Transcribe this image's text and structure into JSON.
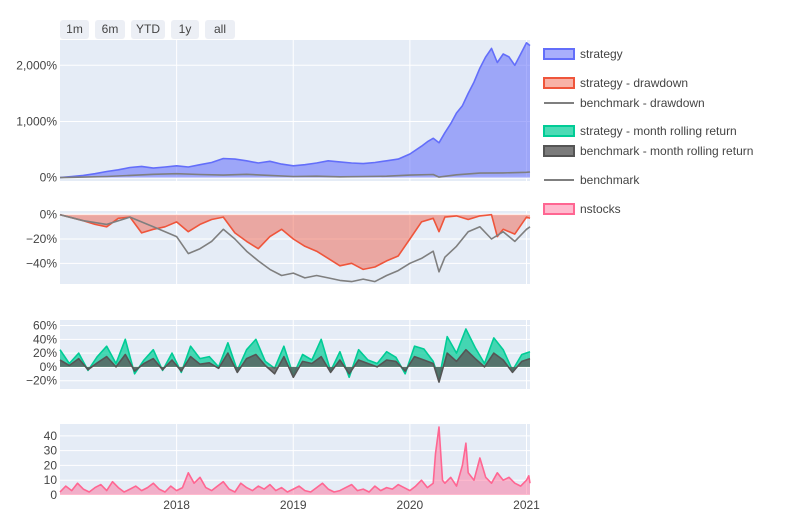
{
  "range_selector": {
    "buttons": [
      {
        "label": "1m"
      },
      {
        "label": "6m"
      },
      {
        "label": "YTD"
      },
      {
        "label": "1y"
      },
      {
        "label": "all"
      }
    ]
  },
  "colors": {
    "plot_bg": "#e5ecf6",
    "grid": "#ffffff",
    "strategy": "#636efa",
    "strategy_fill": "rgba(99,110,250,0.55)",
    "benchmark": "#7f7f7f",
    "drawdown": "#ef553b",
    "drawdown_fill": "rgba(239,85,59,0.45)",
    "rolling": "#00cc96",
    "rolling_fill": "rgba(0,204,150,0.7)",
    "bench_rolling_fill": "rgba(90,90,90,0.8)",
    "nstocks": "#ff6692",
    "nstocks_fill": "rgba(255,102,146,0.45)"
  },
  "chart_data": [
    {
      "type": "area",
      "id": "cumulative",
      "ylim": [
        -60,
        2450
      ],
      "yticks": [
        0,
        1000,
        2000
      ],
      "ytick_labels": [
        "0%",
        "1,000%",
        "2,000%"
      ],
      "series": [
        {
          "name": "strategy",
          "x": [
            2017.0,
            2017.1,
            2017.2,
            2017.3,
            2017.4,
            2017.5,
            2017.6,
            2017.7,
            2017.8,
            2017.9,
            2018.0,
            2018.1,
            2018.2,
            2018.3,
            2018.4,
            2018.5,
            2018.6,
            2018.7,
            2018.8,
            2018.9,
            2019.0,
            2019.1,
            2019.2,
            2019.3,
            2019.4,
            2019.5,
            2019.6,
            2019.7,
            2019.8,
            2019.9,
            2020.0,
            2020.1,
            2020.15,
            2020.2,
            2020.25,
            2020.3,
            2020.35,
            2020.4,
            2020.45,
            2020.5,
            2020.55,
            2020.6,
            2020.65,
            2020.7,
            2020.75,
            2020.8,
            2020.85,
            2020.9,
            2020.95,
            2021.0,
            2021.03
          ],
          "values": [
            0,
            20,
            40,
            70,
            110,
            140,
            180,
            200,
            170,
            190,
            210,
            190,
            230,
            270,
            340,
            330,
            300,
            260,
            290,
            240,
            210,
            230,
            260,
            300,
            280,
            260,
            250,
            270,
            300,
            330,
            420,
            560,
            640,
            700,
            620,
            800,
            960,
            1150,
            1280,
            1500,
            1700,
            1950,
            2150,
            2300,
            2050,
            2200,
            2150,
            2000,
            2200,
            2400,
            2350
          ]
        },
        {
          "name": "benchmark",
          "x": [
            2017.0,
            2017.2,
            2017.4,
            2017.6,
            2017.8,
            2018.0,
            2018.2,
            2018.4,
            2018.6,
            2018.8,
            2019.0,
            2019.2,
            2019.4,
            2019.6,
            2019.8,
            2020.0,
            2020.2,
            2020.25,
            2020.4,
            2020.6,
            2020.8,
            2021.0,
            2021.03
          ],
          "values": [
            0,
            10,
            20,
            40,
            60,
            70,
            55,
            45,
            60,
            40,
            20,
            25,
            15,
            20,
            25,
            45,
            55,
            10,
            50,
            80,
            85,
            95,
            100
          ]
        }
      ]
    },
    {
      "type": "area",
      "id": "drawdown",
      "ylim": [
        -57,
        3
      ],
      "yticks": [
        0,
        -20,
        -40
      ],
      "ytick_labels": [
        "0%",
        "−20%",
        "−40%"
      ],
      "series": [
        {
          "name": "strategy - drawdown",
          "x": [
            2017.0,
            2017.2,
            2017.3,
            2017.4,
            2017.5,
            2017.6,
            2017.7,
            2017.8,
            2017.9,
            2018.0,
            2018.1,
            2018.2,
            2018.3,
            2018.4,
            2018.5,
            2018.6,
            2018.7,
            2018.8,
            2018.9,
            2019.0,
            2019.1,
            2019.2,
            2019.3,
            2019.4,
            2019.5,
            2019.6,
            2019.7,
            2019.8,
            2019.9,
            2020.0,
            2020.1,
            2020.2,
            2020.25,
            2020.3,
            2020.4,
            2020.5,
            2020.6,
            2020.7,
            2020.75,
            2020.8,
            2020.9,
            2021.0,
            2021.03
          ],
          "values": [
            0,
            -5,
            -8,
            -10,
            -3,
            -2,
            -15,
            -12,
            -10,
            -6,
            -14,
            -8,
            -4,
            -2,
            -15,
            -22,
            -28,
            -18,
            -12,
            -20,
            -26,
            -30,
            -36,
            -42,
            -40,
            -45,
            -43,
            -38,
            -34,
            -20,
            -6,
            -3,
            -14,
            -2,
            -1,
            -4,
            -1,
            0,
            -18,
            -12,
            -16,
            -2,
            -3
          ]
        },
        {
          "name": "benchmark - drawdown",
          "x": [
            2017.0,
            2017.2,
            2017.4,
            2017.6,
            2017.8,
            2018.0,
            2018.1,
            2018.2,
            2018.3,
            2018.4,
            2018.5,
            2018.6,
            2018.7,
            2018.8,
            2018.9,
            2019.0,
            2019.1,
            2019.2,
            2019.3,
            2019.4,
            2019.5,
            2019.6,
            2019.7,
            2019.8,
            2019.9,
            2020.0,
            2020.1,
            2020.2,
            2020.25,
            2020.3,
            2020.4,
            2020.5,
            2020.6,
            2020.7,
            2020.8,
            2020.9,
            2021.0,
            2021.03
          ],
          "values": [
            0,
            -5,
            -8,
            -2,
            -10,
            -18,
            -32,
            -28,
            -22,
            -12,
            -20,
            -30,
            -38,
            -45,
            -50,
            -48,
            -52,
            -50,
            -52,
            -54,
            -55,
            -53,
            -55,
            -50,
            -46,
            -40,
            -36,
            -30,
            -47,
            -35,
            -26,
            -14,
            -10,
            -20,
            -14,
            -22,
            -12,
            -10
          ]
        }
      ]
    },
    {
      "type": "area",
      "id": "rolling",
      "ylim": [
        -32,
        68
      ],
      "yticks": [
        -20,
        0,
        20,
        40,
        60
      ],
      "ytick_labels": [
        "−20%",
        "0%",
        "20%",
        "40%",
        "60%"
      ],
      "series": [
        {
          "name": "strategy - month rolling return",
          "x": [
            2017.0,
            2017.08,
            2017.16,
            2017.24,
            2017.32,
            2017.4,
            2017.48,
            2017.56,
            2017.64,
            2017.72,
            2017.8,
            2017.88,
            2017.96,
            2018.04,
            2018.12,
            2018.2,
            2018.28,
            2018.36,
            2018.44,
            2018.52,
            2018.6,
            2018.68,
            2018.76,
            2018.84,
            2018.92,
            2019.0,
            2019.08,
            2019.16,
            2019.24,
            2019.32,
            2019.4,
            2019.48,
            2019.56,
            2019.64,
            2019.72,
            2019.8,
            2019.88,
            2019.96,
            2020.04,
            2020.12,
            2020.2,
            2020.25,
            2020.32,
            2020.4,
            2020.48,
            2020.56,
            2020.64,
            2020.72,
            2020.8,
            2020.88,
            2020.96,
            2021.03
          ],
          "values": [
            25,
            5,
            20,
            -5,
            15,
            30,
            5,
            40,
            -10,
            10,
            25,
            -5,
            20,
            -8,
            30,
            12,
            15,
            0,
            35,
            -5,
            25,
            40,
            8,
            -2,
            30,
            -12,
            18,
            10,
            40,
            -6,
            22,
            -15,
            25,
            10,
            5,
            22,
            14,
            -10,
            30,
            26,
            8,
            -18,
            44,
            20,
            55,
            28,
            5,
            42,
            25,
            -5,
            18,
            22
          ]
        },
        {
          "name": "benchmark - month rolling return",
          "x": [
            2017.0,
            2017.08,
            2017.16,
            2017.24,
            2017.32,
            2017.4,
            2017.48,
            2017.56,
            2017.64,
            2017.72,
            2017.8,
            2017.88,
            2017.96,
            2018.04,
            2018.12,
            2018.2,
            2018.28,
            2018.36,
            2018.44,
            2018.52,
            2018.6,
            2018.68,
            2018.76,
            2018.84,
            2018.92,
            2019.0,
            2019.08,
            2019.16,
            2019.24,
            2019.32,
            2019.4,
            2019.48,
            2019.56,
            2019.64,
            2019.72,
            2019.8,
            2019.88,
            2019.96,
            2020.04,
            2020.12,
            2020.2,
            2020.25,
            2020.32,
            2020.4,
            2020.48,
            2020.56,
            2020.64,
            2020.72,
            2020.8,
            2020.88,
            2020.96,
            2021.03
          ],
          "values": [
            10,
            2,
            12,
            -4,
            6,
            15,
            0,
            18,
            -6,
            5,
            12,
            -4,
            10,
            -6,
            15,
            4,
            6,
            -2,
            20,
            -8,
            12,
            18,
            2,
            -10,
            15,
            -15,
            8,
            5,
            15,
            -8,
            10,
            -10,
            10,
            5,
            0,
            10,
            8,
            -6,
            15,
            10,
            5,
            -22,
            20,
            8,
            25,
            12,
            0,
            20,
            10,
            -8,
            8,
            12
          ]
        }
      ]
    },
    {
      "type": "area",
      "id": "nstocks",
      "ylim": [
        0,
        48
      ],
      "yticks": [
        0,
        10,
        20,
        30,
        40
      ],
      "ytick_labels": [
        "0",
        "10",
        "20",
        "30",
        "40"
      ],
      "xticks": [
        2018,
        2019,
        2020,
        2021
      ],
      "xtick_labels": [
        "2018",
        "2019",
        "2020",
        "2021"
      ],
      "series": [
        {
          "name": "nstocks",
          "x": [
            2017.0,
            2017.05,
            2017.1,
            2017.15,
            2017.2,
            2017.25,
            2017.3,
            2017.35,
            2017.4,
            2017.45,
            2017.5,
            2017.55,
            2017.6,
            2017.65,
            2017.7,
            2017.75,
            2017.8,
            2017.85,
            2017.9,
            2017.95,
            2018.0,
            2018.05,
            2018.1,
            2018.15,
            2018.2,
            2018.25,
            2018.3,
            2018.35,
            2018.4,
            2018.45,
            2018.5,
            2018.55,
            2018.6,
            2018.65,
            2018.7,
            2018.75,
            2018.8,
            2018.85,
            2018.9,
            2018.95,
            2019.0,
            2019.05,
            2019.1,
            2019.15,
            2019.2,
            2019.25,
            2019.3,
            2019.35,
            2019.4,
            2019.45,
            2019.5,
            2019.55,
            2019.6,
            2019.65,
            2019.7,
            2019.75,
            2019.8,
            2019.85,
            2019.9,
            2019.95,
            2020.0,
            2020.05,
            2020.1,
            2020.15,
            2020.2,
            2020.22,
            2020.25,
            2020.28,
            2020.3,
            2020.35,
            2020.4,
            2020.45,
            2020.48,
            2020.5,
            2020.55,
            2020.6,
            2020.65,
            2020.7,
            2020.75,
            2020.8,
            2020.85,
            2020.9,
            2020.95,
            2021.0,
            2021.02,
            2021.03
          ],
          "values": [
            2,
            6,
            3,
            8,
            4,
            2,
            5,
            7,
            3,
            9,
            5,
            2,
            4,
            6,
            3,
            5,
            8,
            4,
            2,
            6,
            3,
            5,
            15,
            8,
            12,
            5,
            3,
            6,
            9,
            4,
            2,
            8,
            5,
            3,
            6,
            4,
            7,
            3,
            5,
            2,
            4,
            6,
            3,
            2,
            5,
            8,
            4,
            2,
            3,
            5,
            7,
            3,
            4,
            2,
            6,
            3,
            5,
            4,
            7,
            5,
            3,
            6,
            10,
            5,
            8,
            28,
            46,
            10,
            8,
            12,
            6,
            20,
            35,
            15,
            10,
            25,
            12,
            8,
            15,
            10,
            12,
            8,
            6,
            10,
            13,
            8
          ]
        }
      ]
    }
  ],
  "legend": {
    "items": [
      {
        "name": "strategy"
      },
      {
        "name": "strategy - drawdown"
      },
      {
        "name": "benchmark - drawdown"
      },
      {
        "name": "strategy - month rolling return"
      },
      {
        "name": "benchmark - month rolling return"
      },
      {
        "name": "benchmark"
      },
      {
        "name": "nstocks"
      }
    ]
  }
}
